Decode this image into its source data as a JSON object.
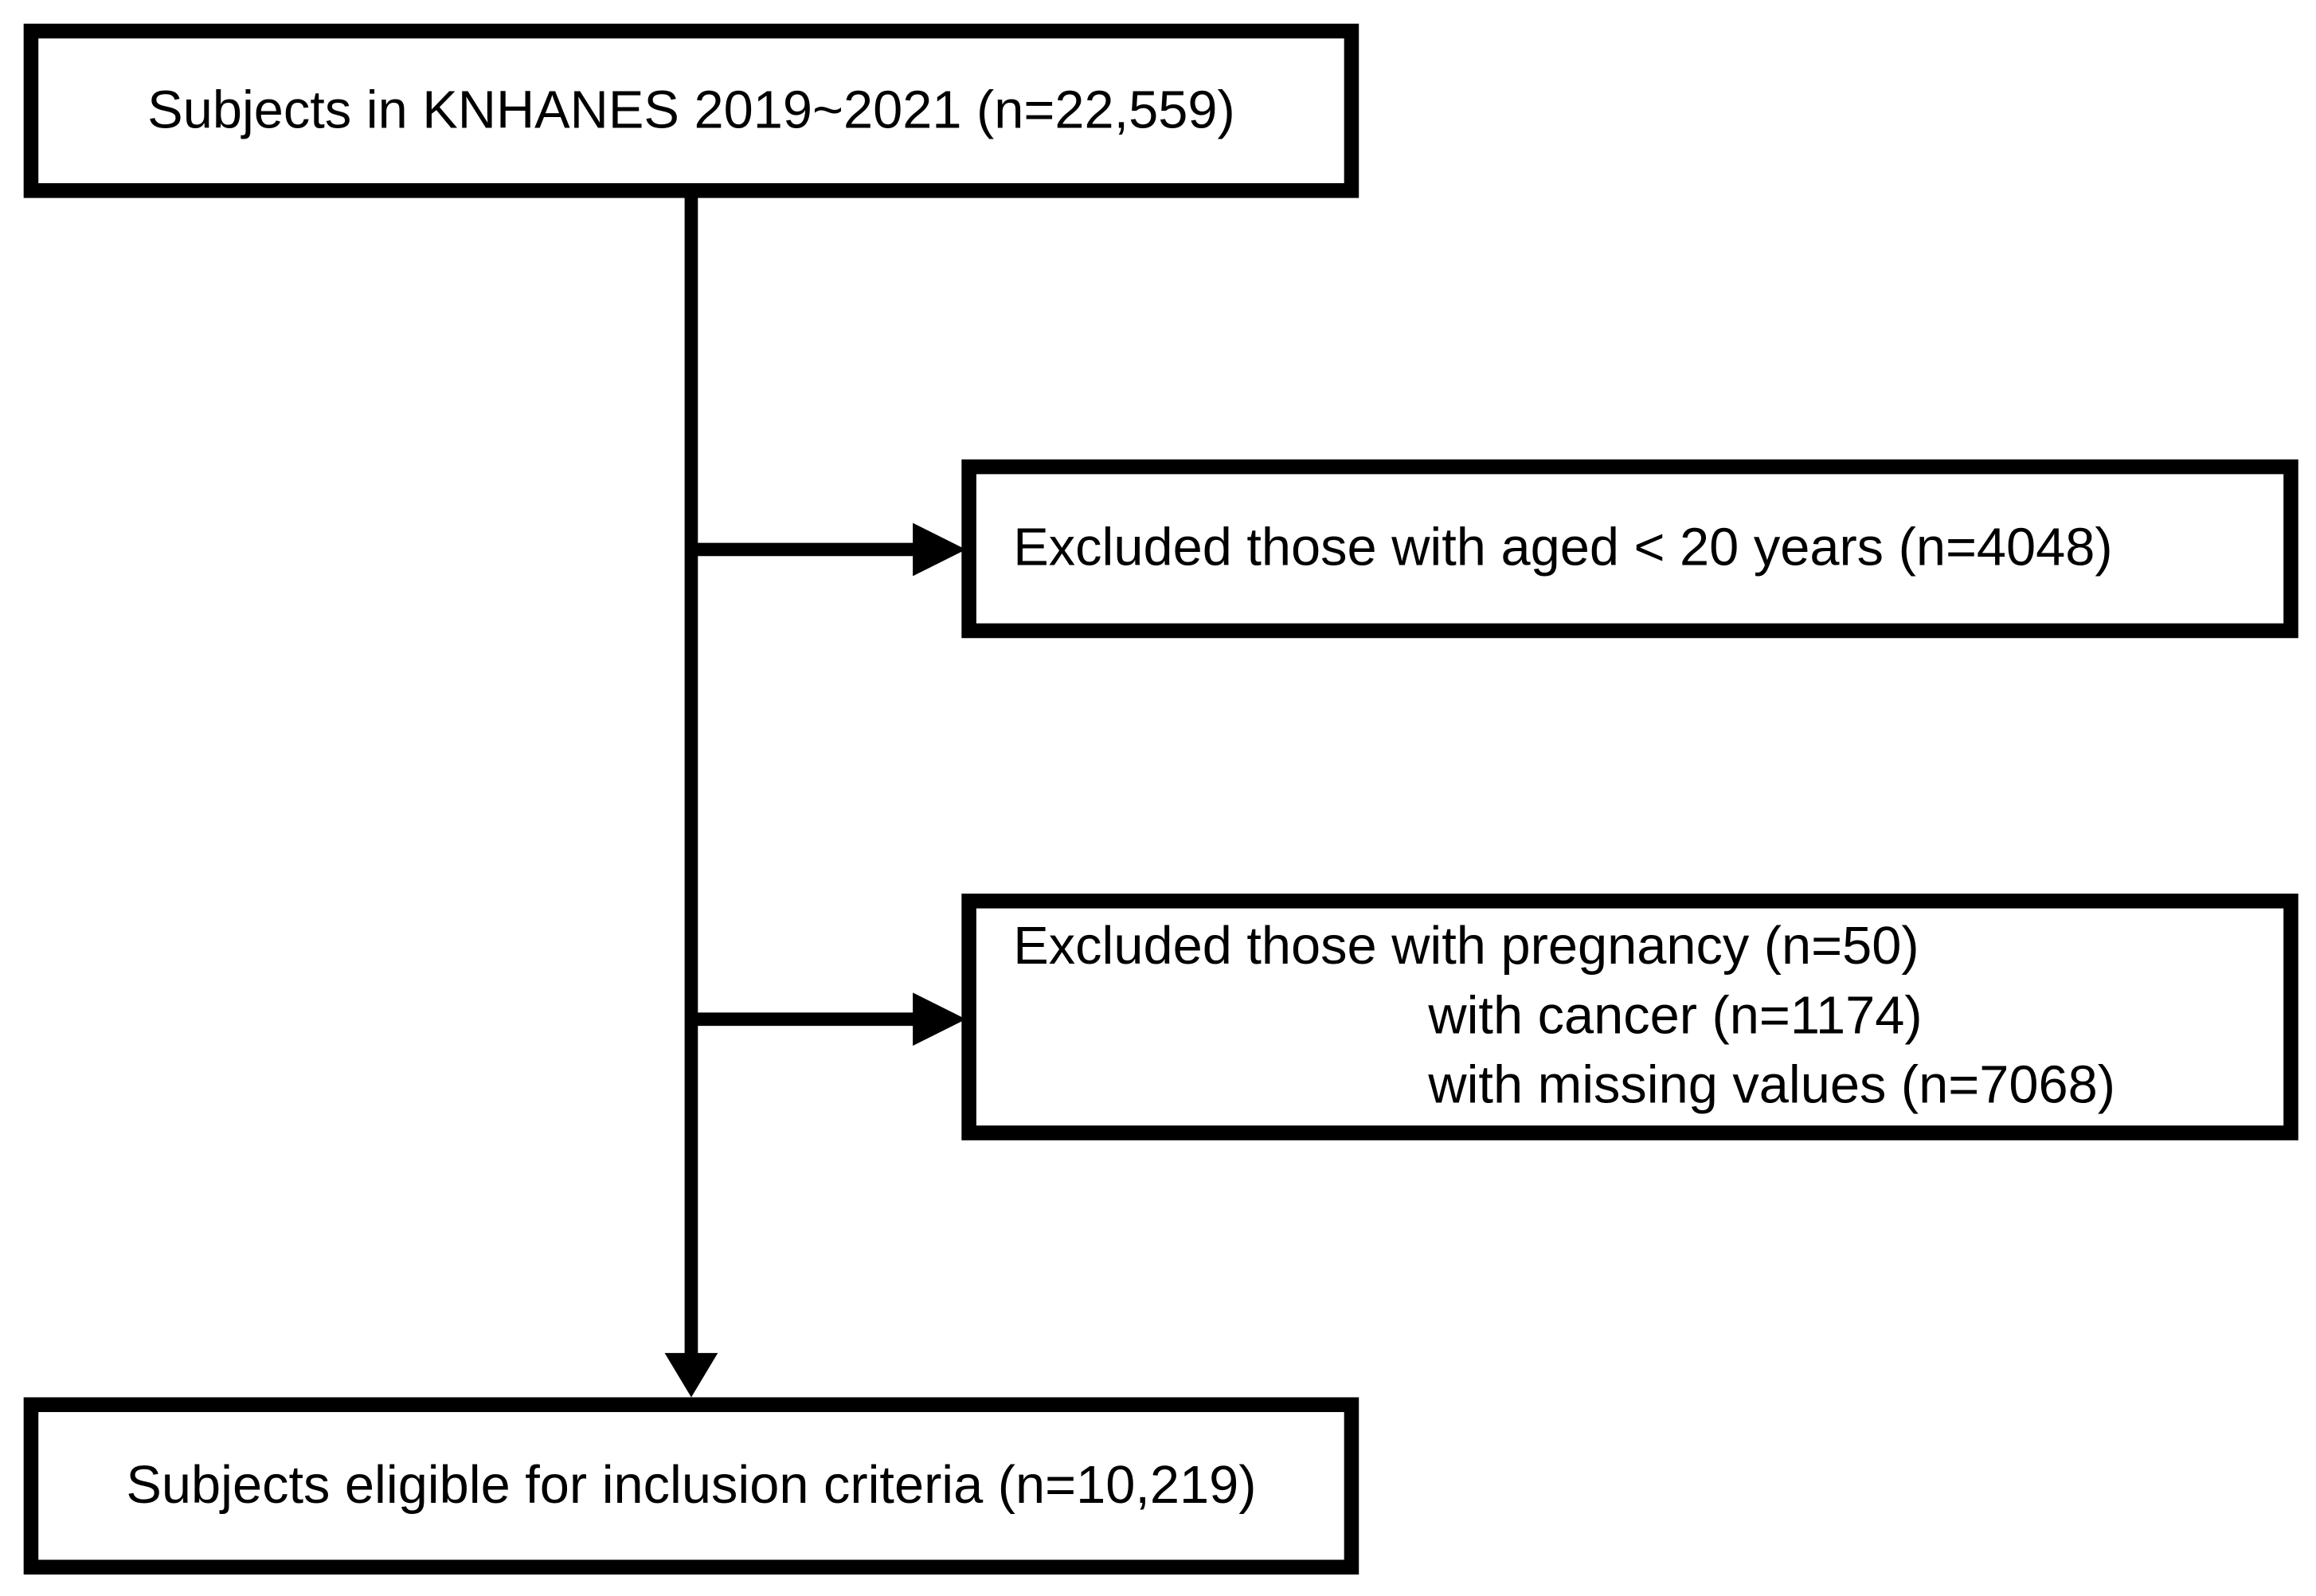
{
  "nodes": [
    {
      "label": "Subjects in KNHANES 2019~2021 (n=22,559)"
    },
    {
      "label": "Excluded those with aged < 20 years (n=4048)"
    },
    {
      "lines": [
        "Excluded those with pregnancy (n=50)",
        "with cancer (n=1174)",
        "with missing values (n=7068)"
      ]
    },
    {
      "label": "Subjects eligible for inclusion criteria (n=10,219)"
    }
  ]
}
